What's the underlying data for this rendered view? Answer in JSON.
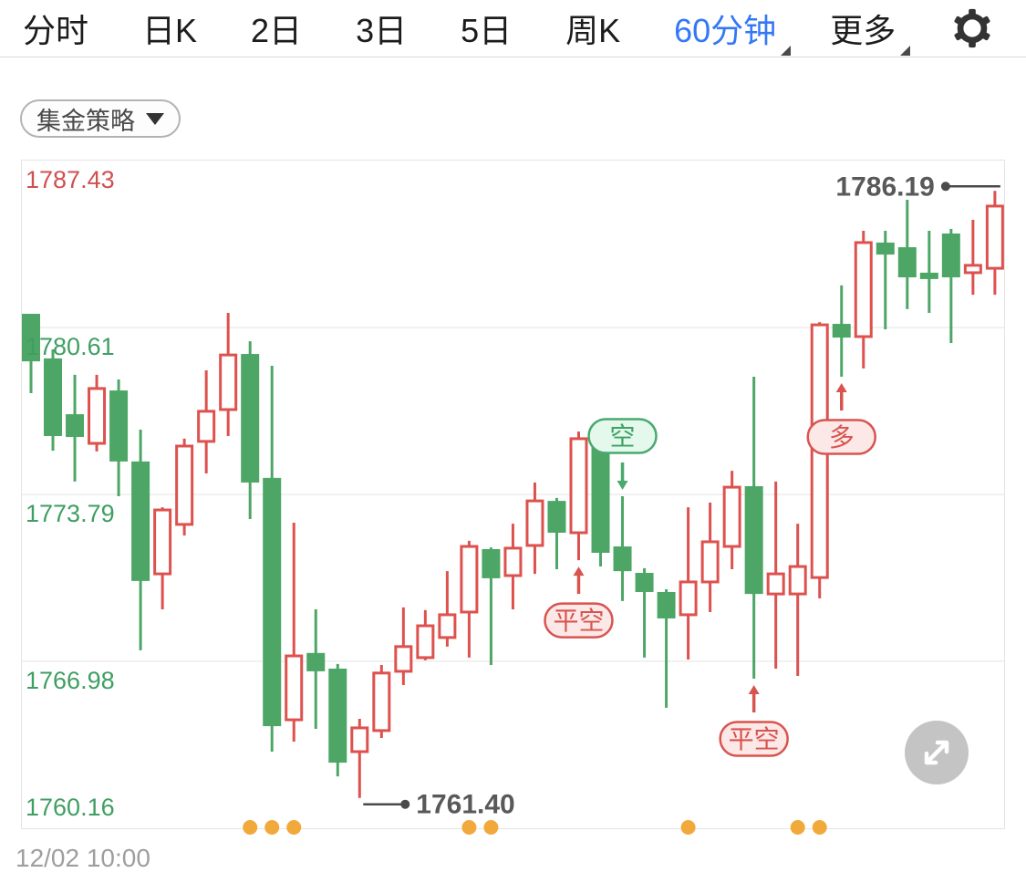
{
  "nav": {
    "items": [
      {
        "label": "分时",
        "active": false,
        "caret": false
      },
      {
        "label": "日K",
        "active": false,
        "caret": false
      },
      {
        "label": "2日",
        "active": false,
        "caret": false
      },
      {
        "label": "3日",
        "active": false,
        "caret": false
      },
      {
        "label": "5日",
        "active": false,
        "caret": false
      },
      {
        "label": "周K",
        "active": false,
        "caret": false
      },
      {
        "label": "60分钟",
        "active": true,
        "caret": true
      },
      {
        "label": "更多",
        "active": false,
        "caret": true
      }
    ],
    "active_color": "#3478f6",
    "gear_icon": "gear-icon"
  },
  "strategy_button": {
    "label": "集金策略",
    "caret_icon": "caret-down-icon"
  },
  "footer": {
    "timestamp": "12/02 10:00"
  },
  "chart_data": {
    "type": "candlestick",
    "interval": "60分钟",
    "y_axis": {
      "max": 1787.43,
      "min": 1760.16,
      "labels": [
        {
          "price": "1787.43",
          "color": "#d05050"
        },
        {
          "price": "1780.61",
          "color": "#3f9e62"
        },
        {
          "price": "1773.79",
          "color": "#3f9e62"
        },
        {
          "price": "1766.98",
          "color": "#3f9e62"
        },
        {
          "price": "1760.16",
          "color": "#3f9e62"
        }
      ]
    },
    "x_start_label": "12/02 10:00",
    "colors": {
      "up": "#dd514e",
      "down": "#4da665",
      "grid": "#ededed",
      "border": "#e4e4e4",
      "signal_dot": "#f2a93b",
      "callout": "#595959",
      "bubble_red_border": "#d8544f",
      "bubble_red_bg": "#fce8e7",
      "bubble_red_text": "#d8544f",
      "bubble_green_border": "#49a96e",
      "bubble_green_bg": "#e4f8ec",
      "bubble_green_text": "#3da263"
    },
    "candles": [
      [
        1781.17,
        1781.17,
        1777.93,
        1779.23,
        "d"
      ],
      [
        1779.35,
        1779.72,
        1775.58,
        1776.18,
        "d"
      ],
      [
        1777.07,
        1778.68,
        1774.32,
        1776.14,
        "d"
      ],
      [
        1775.88,
        1778.68,
        1775.55,
        1778.12,
        "u"
      ],
      [
        1778.04,
        1778.49,
        1773.72,
        1775.14,
        "d"
      ],
      [
        1775.14,
        1776.44,
        1767.43,
        1770.26,
        "d"
      ],
      [
        1770.55,
        1773.27,
        1769.1,
        1773.16,
        "u"
      ],
      [
        1772.57,
        1776.07,
        1772.12,
        1775.77,
        "u"
      ],
      [
        1775.96,
        1778.86,
        1774.65,
        1777.19,
        "u"
      ],
      [
        1777.26,
        1781.21,
        1776.18,
        1779.49,
        "u"
      ],
      [
        1779.53,
        1780.05,
        1772.79,
        1774.28,
        "d"
      ],
      [
        1774.47,
        1779.05,
        1763.29,
        1764.33,
        "d"
      ],
      [
        1764.59,
        1772.64,
        1763.7,
        1767.2,
        "u"
      ],
      [
        1767.32,
        1769.1,
        1764.22,
        1766.57,
        "d"
      ],
      [
        1766.68,
        1766.87,
        1762.28,
        1762.84,
        "d"
      ],
      [
        1763.29,
        1764.63,
        1761.4,
        1764.26,
        "u"
      ],
      [
        1764.15,
        1766.83,
        1763.85,
        1766.5,
        "u"
      ],
      [
        1766.57,
        1769.18,
        1766.01,
        1767.58,
        "u"
      ],
      [
        1767.13,
        1769.07,
        1767.02,
        1768.43,
        "u"
      ],
      [
        1767.95,
        1770.66,
        1767.58,
        1768.88,
        "u"
      ],
      [
        1768.99,
        1771.9,
        1767.13,
        1771.67,
        "u"
      ],
      [
        1771.56,
        1771.63,
        1766.83,
        1770.37,
        "d"
      ],
      [
        1770.48,
        1772.6,
        1769.1,
        1771.6,
        "u"
      ],
      [
        1771.71,
        1774.28,
        1770.55,
        1773.53,
        "u"
      ],
      [
        1773.53,
        1773.65,
        1770.74,
        1772.23,
        "d"
      ],
      [
        1772.23,
        1776.36,
        1771.11,
        1776.07,
        "u"
      ],
      [
        1775.96,
        1776.14,
        1770.85,
        1771.41,
        "d"
      ],
      [
        1771.67,
        1773.72,
        1769.44,
        1770.66,
        "d"
      ],
      [
        1770.59,
        1770.78,
        1767.13,
        1769.81,
        "d"
      ],
      [
        1769.81,
        1769.92,
        1765.08,
        1768.73,
        "d"
      ],
      [
        1768.88,
        1773.27,
        1767.05,
        1770.22,
        "u"
      ],
      [
        1770.22,
        1773.46,
        1768.99,
        1771.86,
        "u"
      ],
      [
        1771.67,
        1774.76,
        1770.74,
        1774.09,
        "u"
      ],
      [
        1774.13,
        1778.6,
        1766.27,
        1769.73,
        "d"
      ],
      [
        1769.73,
        1774.32,
        1766.68,
        1770.55,
        "u"
      ],
      [
        1769.73,
        1772.6,
        1766.38,
        1770.85,
        "u"
      ],
      [
        1770.4,
        1780.83,
        1769.55,
        1780.72,
        "u"
      ],
      [
        1780.76,
        1782.33,
        1778.6,
        1780.2,
        "d"
      ],
      [
        1780.24,
        1784.56,
        1778.94,
        1784.08,
        "u"
      ],
      [
        1784.08,
        1784.56,
        1780.54,
        1783.59,
        "d"
      ],
      [
        1783.89,
        1785.83,
        1781.36,
        1782.66,
        "d"
      ],
      [
        1782.85,
        1784.56,
        1781.21,
        1782.59,
        "d"
      ],
      [
        1784.45,
        1784.64,
        1779.98,
        1782.66,
        "d"
      ],
      [
        1782.85,
        1785.01,
        1781.95,
        1783.15,
        "u"
      ],
      [
        1783.03,
        1786.19,
        1781.95,
        1785.57,
        "u"
      ]
    ],
    "annotations": [
      {
        "text": "空",
        "candle": 28,
        "position": "above",
        "scheme": "green"
      },
      {
        "text": "平空",
        "candle": 26,
        "position": "below",
        "scheme": "red"
      },
      {
        "text": "平空",
        "candle": 34,
        "position": "below",
        "scheme": "red"
      },
      {
        "text": "多",
        "candle": 38,
        "position": "below",
        "scheme": "red"
      }
    ],
    "callouts": [
      {
        "text": "1761.40",
        "candle": 16,
        "anchor": "low",
        "side": "right"
      },
      {
        "text": "1786.19",
        "candle": 45,
        "anchor": "high",
        "side": "left"
      }
    ],
    "signal_dots": {
      "candles": [
        11,
        12,
        13,
        21,
        22,
        31,
        36,
        37
      ]
    }
  },
  "expand_button": {
    "icon": "expand-arrows-icon"
  }
}
